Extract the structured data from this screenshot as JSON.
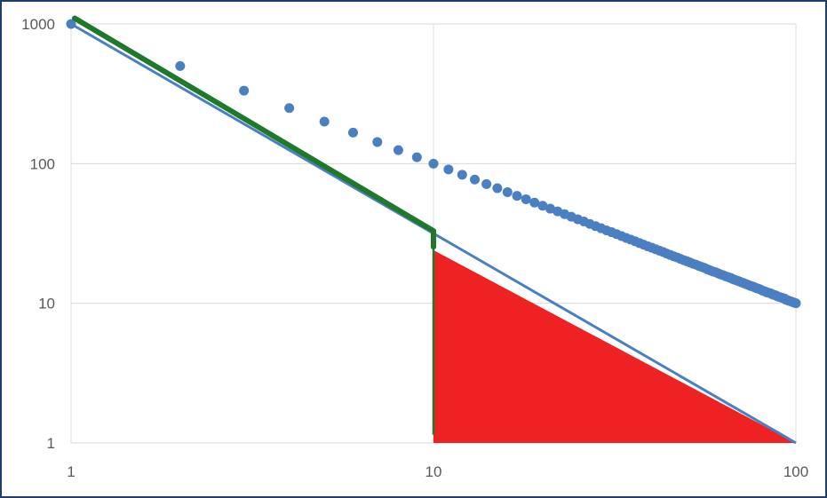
{
  "chart_data": {
    "type": "scatter",
    "x_scale": "log",
    "y_scale": "log",
    "xlim": [
      1,
      100
    ],
    "ylim": [
      1,
      1000
    ],
    "grid": true,
    "x_ticks": [
      "1",
      "10",
      "100"
    ],
    "y_ticks": [
      "1",
      "10",
      "100",
      "1000"
    ],
    "colors": {
      "points": "#4a7fc1",
      "fit_line": "#4a7fc1",
      "overlay_line": "#1e7a2a",
      "fill": "#ee2222",
      "grid": "#d9d9d9",
      "border": "#1f3d6e"
    },
    "series": [
      {
        "type": "scatter",
        "x": [
          1,
          2,
          3,
          4,
          5,
          6,
          7,
          8,
          9,
          10,
          11,
          12,
          13,
          14,
          15,
          16,
          17,
          18,
          19,
          20,
          21,
          22,
          23,
          24,
          25,
          26,
          27,
          28,
          29,
          30,
          31,
          32,
          33,
          34,
          35,
          36,
          37,
          38,
          39,
          40,
          41,
          42,
          43,
          44,
          45,
          46,
          47,
          48,
          49,
          50,
          51,
          52,
          53,
          54,
          55,
          56,
          57,
          58,
          59,
          60,
          61,
          62,
          63,
          64,
          65,
          66,
          67,
          68,
          69,
          70,
          71,
          72,
          73,
          74,
          75,
          76,
          77,
          78,
          79,
          80,
          81,
          82,
          83,
          84,
          85,
          86,
          87,
          88,
          89,
          90,
          91,
          92,
          93,
          94,
          95,
          96,
          97,
          98,
          99,
          100
        ],
        "y": [
          1000,
          500,
          333.3,
          250,
          200,
          166.7,
          142.9,
          125,
          111.1,
          100,
          90.9,
          83.3,
          76.9,
          71.4,
          66.7,
          62.5,
          58.8,
          55.6,
          52.6,
          50,
          47.6,
          45.5,
          43.5,
          41.7,
          40,
          38.5,
          37,
          35.7,
          34.5,
          33.3,
          32.3,
          31.3,
          30.3,
          29.4,
          28.6,
          27.8,
          27,
          26.3,
          25.6,
          25,
          24.4,
          23.8,
          23.3,
          22.7,
          22.2,
          21.7,
          21.3,
          20.8,
          20.4,
          20,
          19.6,
          19.2,
          18.9,
          18.5,
          18.2,
          17.9,
          17.5,
          17.2,
          16.9,
          16.7,
          16.4,
          16.1,
          15.9,
          15.6,
          15.4,
          15.2,
          14.9,
          14.7,
          14.5,
          14.3,
          14.1,
          13.9,
          13.7,
          13.5,
          13.3,
          13.2,
          13,
          12.8,
          12.7,
          12.5,
          12.3,
          12.2,
          12,
          11.9,
          11.8,
          11.6,
          11.5,
          11.4,
          11.2,
          11.1,
          11,
          10.9,
          10.8,
          10.6,
          10.5,
          10.4,
          10.3,
          10.2,
          10.1,
          10
        ]
      },
      {
        "type": "line",
        "role": "fit",
        "x": [
          1,
          100
        ],
        "y": [
          1000,
          1
        ]
      },
      {
        "type": "line",
        "role": "overlay",
        "x": [
          1,
          10,
          10
        ],
        "y": [
          1100,
          33,
          1.05
        ]
      },
      {
        "type": "area",
        "role": "shaded-region",
        "x": [
          10,
          10,
          100
        ],
        "y": [
          24,
          1,
          1
        ]
      }
    ]
  }
}
